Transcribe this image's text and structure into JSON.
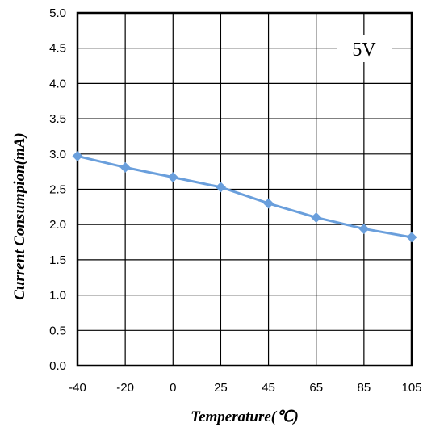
{
  "chart_data": {
    "type": "line",
    "categories": [
      "-40",
      "-20",
      "0",
      "25",
      "45",
      "65",
      "85",
      "105"
    ],
    "series": [
      {
        "values": [
          2.97,
          2.81,
          2.67,
          2.53,
          2.3,
          2.1,
          1.94,
          1.82
        ]
      }
    ],
    "y_ticks": [
      "0.0",
      "0.5",
      "1.0",
      "1.5",
      "2.0",
      "2.5",
      "3.0",
      "3.5",
      "4.0",
      "4.5",
      "5.0"
    ],
    "ylim": [
      0,
      5
    ],
    "xlabel": "Temperature(℃)",
    "ylabel": "Current  Consumpion(mA)",
    "annotation": "5V",
    "grid": true,
    "colors": {
      "series": "#6a9fdc",
      "grid": "#000000",
      "frame": "#000000"
    }
  }
}
